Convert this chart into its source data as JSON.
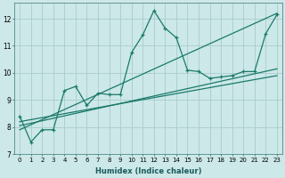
{
  "xlabel": "Humidex (Indice chaleur)",
  "bg_color": "#cce8e8",
  "grid_color": "#aacccc",
  "line_color": "#1a7a6a",
  "xlim": [
    -0.5,
    23.5
  ],
  "ylim": [
    7.0,
    12.6
  ],
  "yticks": [
    7,
    8,
    9,
    10,
    11,
    12
  ],
  "xticks": [
    0,
    1,
    2,
    3,
    4,
    5,
    6,
    7,
    8,
    9,
    10,
    11,
    12,
    13,
    14,
    15,
    16,
    17,
    18,
    19,
    20,
    21,
    22,
    23
  ],
  "line1_x": [
    0,
    1,
    2,
    3,
    4,
    5,
    6,
    7,
    8,
    9,
    10,
    11,
    12,
    13,
    14,
    15,
    16,
    17,
    18,
    19,
    20,
    21,
    22,
    23
  ],
  "line1_y": [
    8.4,
    7.45,
    7.9,
    7.9,
    9.35,
    9.5,
    8.8,
    9.25,
    9.2,
    9.2,
    10.75,
    11.4,
    12.3,
    11.65,
    11.3,
    10.1,
    10.05,
    9.8,
    9.85,
    9.9,
    10.05,
    10.05,
    11.45,
    12.15
  ],
  "line2_x": [
    0,
    23
  ],
  "line2_y": [
    7.9,
    12.2
  ],
  "line3_x": [
    0,
    23
  ],
  "line3_y": [
    8.05,
    10.15
  ],
  "line4_x": [
    0,
    23
  ],
  "line4_y": [
    8.2,
    9.9
  ]
}
